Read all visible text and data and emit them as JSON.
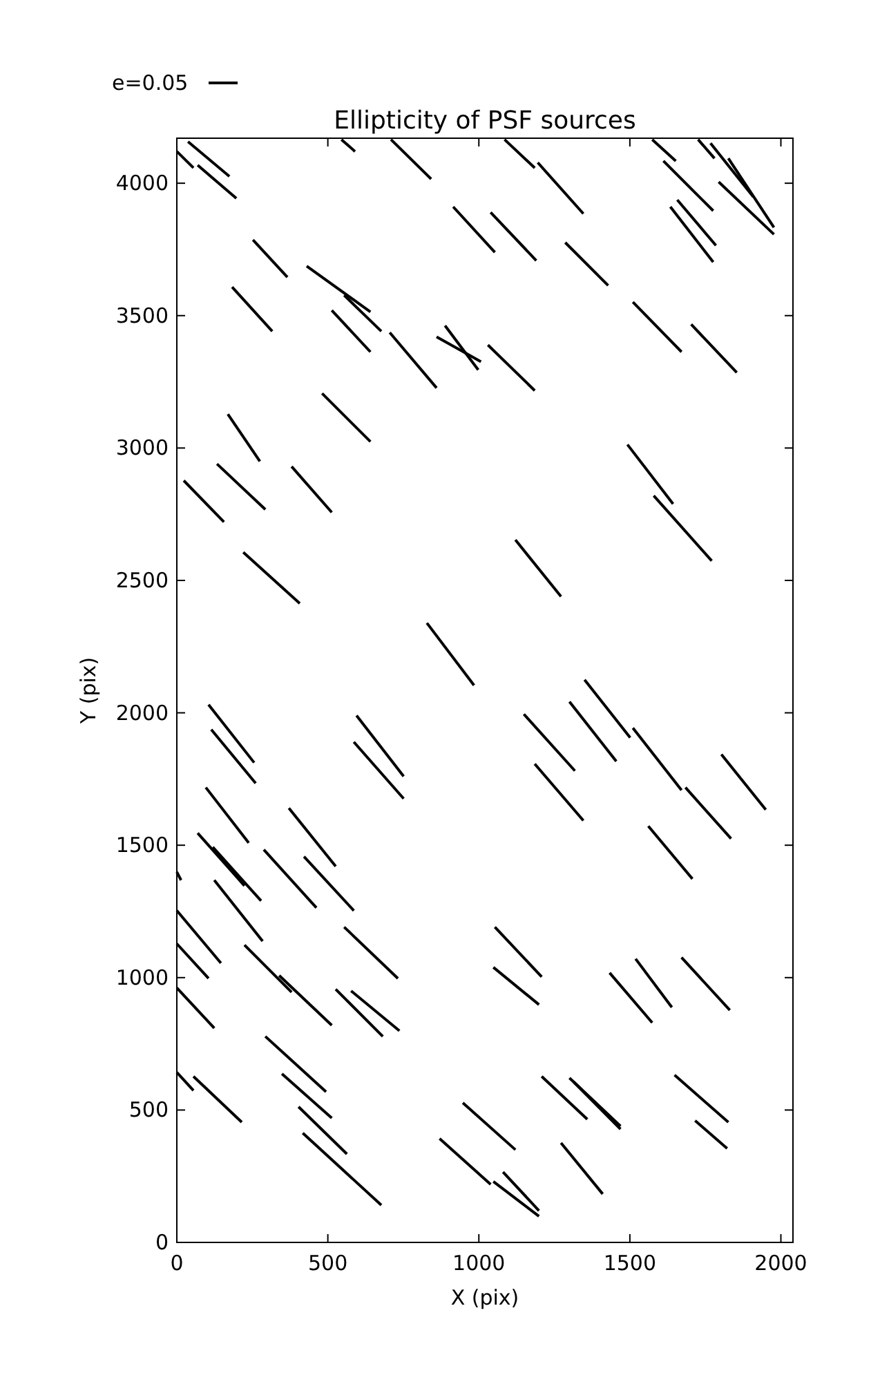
{
  "chart_data": {
    "type": "line",
    "title": "Ellipticity of PSF sources",
    "xlabel": "X (pix)",
    "ylabel": "Y (pix)",
    "annotations": [
      "e=0.05"
    ],
    "color": "#000000",
    "xlim": [
      0,
      2040
    ],
    "ylim": [
      0,
      4170
    ],
    "xticks": [
      0,
      500,
      1000,
      1500,
      2000
    ],
    "yticks": [
      0,
      500,
      1000,
      1500,
      2000,
      2500,
      3000,
      3500,
      4000
    ],
    "grid": false,
    "series": [
      {
        "x": [
          0,
          55
        ],
        "values": [
          4120,
          4058
        ]
      },
      {
        "x": [
          37,
          174
        ],
        "values": [
          4157,
          4026
        ]
      },
      {
        "x": [
          69,
          197
        ],
        "values": [
          4068,
          3943
        ]
      },
      {
        "x": [
          545,
          590
        ],
        "values": [
          4165,
          4120
        ]
      },
      {
        "x": [
          709,
          842
        ],
        "values": [
          4165,
          4016
        ]
      },
      {
        "x": [
          1085,
          1185
        ],
        "values": [
          4165,
          4058
        ]
      },
      {
        "x": [
          1195,
          1346
        ],
        "values": [
          4078,
          3885
        ]
      },
      {
        "x": [
          1574,
          1652
        ],
        "values": [
          4165,
          4084
        ]
      },
      {
        "x": [
          1611,
          1776
        ],
        "values": [
          4084,
          3896
        ]
      },
      {
        "x": [
          1726,
          1780
        ],
        "values": [
          4165,
          4094
        ]
      },
      {
        "x": [
          1767,
          1909
        ],
        "values": [
          4151,
          3948
        ]
      },
      {
        "x": [
          1826,
          1977
        ],
        "values": [
          4094,
          3833
        ]
      },
      {
        "x": [
          1634,
          1776
        ],
        "values": [
          3911,
          3702
        ]
      },
      {
        "x": [
          1657,
          1785
        ],
        "values": [
          3937,
          3765
        ]
      },
      {
        "x": [
          1794,
          1977
        ],
        "values": [
          4005,
          3807
        ]
      },
      {
        "x": [
          915,
          1053
        ],
        "values": [
          3911,
          3739
        ]
      },
      {
        "x": [
          1039,
          1190
        ],
        "values": [
          3890,
          3708
        ]
      },
      {
        "x": [
          1286,
          1428
        ],
        "values": [
          3776,
          3614
        ]
      },
      {
        "x": [
          252,
          366
        ],
        "values": [
          3786,
          3645
        ]
      },
      {
        "x": [
          430,
          641
        ],
        "values": [
          3687,
          3514
        ]
      },
      {
        "x": [
          554,
          677
        ],
        "values": [
          3577,
          3441
        ]
      },
      {
        "x": [
          513,
          641
        ],
        "values": [
          3520,
          3363
        ]
      },
      {
        "x": [
          705,
          860
        ],
        "values": [
          3436,
          3227
        ]
      },
      {
        "x": [
          888,
          998
        ],
        "values": [
          3462,
          3295
        ]
      },
      {
        "x": [
          860,
          1007
        ],
        "values": [
          3420,
          3326
        ]
      },
      {
        "x": [
          1030,
          1185
        ],
        "values": [
          3389,
          3217
        ]
      },
      {
        "x": [
          183,
          316
        ],
        "values": [
          3608,
          3441
        ]
      },
      {
        "x": [
          1510,
          1671
        ],
        "values": [
          3551,
          3363
        ]
      },
      {
        "x": [
          1703,
          1854
        ],
        "values": [
          3467,
          3285
        ]
      },
      {
        "x": [
          169,
          275
        ],
        "values": [
          3128,
          2950
        ]
      },
      {
        "x": [
          481,
          641
        ],
        "values": [
          3206,
          3024
        ]
      },
      {
        "x": [
          23,
          156
        ],
        "values": [
          2877,
          2721
        ]
      },
      {
        "x": [
          133,
          293
        ],
        "values": [
          2940,
          2768
        ]
      },
      {
        "x": [
          380,
          513
        ],
        "values": [
          2930,
          2757
        ]
      },
      {
        "x": [
          220,
          407
        ],
        "values": [
          2606,
          2413
        ]
      },
      {
        "x": [
          1121,
          1272
        ],
        "values": [
          2653,
          2439
        ]
      },
      {
        "x": [
          1492,
          1643
        ],
        "values": [
          3013,
          2789
        ]
      },
      {
        "x": [
          1579,
          1771
        ],
        "values": [
          2820,
          2574
        ]
      },
      {
        "x": [
          828,
          984
        ],
        "values": [
          2339,
          2104
        ]
      },
      {
        "x": [
          105,
          256
        ],
        "values": [
          2031,
          1812
        ]
      },
      {
        "x": [
          114,
          261
        ],
        "values": [
          1937,
          1734
        ]
      },
      {
        "x": [
          595,
          751
        ],
        "values": [
          1990,
          1760
        ]
      },
      {
        "x": [
          586,
          751
        ],
        "values": [
          1890,
          1676
        ]
      },
      {
        "x": [
          1149,
          1318
        ],
        "values": [
          1995,
          1781
        ]
      },
      {
        "x": [
          1300,
          1455
        ],
        "values": [
          2042,
          1817
        ]
      },
      {
        "x": [
          1350,
          1501
        ],
        "values": [
          2125,
          1906
        ]
      },
      {
        "x": [
          1185,
          1346
        ],
        "values": [
          1807,
          1593
        ]
      },
      {
        "x": [
          1510,
          1671
        ],
        "values": [
          1943,
          1708
        ]
      },
      {
        "x": [
          1803,
          1950
        ],
        "values": [
          1843,
          1634
        ]
      },
      {
        "x": [
          1561,
          1707
        ],
        "values": [
          1572,
          1373
        ]
      },
      {
        "x": [
          1684,
          1835
        ],
        "values": [
          1718,
          1525
        ]
      },
      {
        "x": [
          96,
          238
        ],
        "values": [
          1718,
          1509
        ]
      },
      {
        "x": [
          69,
          224
        ],
        "values": [
          1546,
          1347
        ]
      },
      {
        "x": [
          0,
          14
        ],
        "values": [
          1399,
          1368
        ]
      },
      {
        "x": [
          119,
          279
        ],
        "values": [
          1493,
          1290
        ]
      },
      {
        "x": [
          288,
          462
        ],
        "values": [
          1483,
          1264
        ]
      },
      {
        "x": [
          371,
          526
        ],
        "values": [
          1640,
          1420
        ]
      },
      {
        "x": [
          421,
          586
        ],
        "values": [
          1457,
          1253
        ]
      },
      {
        "x": [
          0,
          146
        ],
        "values": [
          1253,
          1055
        ]
      },
      {
        "x": [
          0,
          105
        ],
        "values": [
          1128,
          997
        ]
      },
      {
        "x": [
          124,
          284
        ],
        "values": [
          1368,
          1138
        ]
      },
      {
        "x": [
          224,
          380
        ],
        "values": [
          1123,
          945
        ]
      },
      {
        "x": [
          339,
          513
        ],
        "values": [
          1008,
          820
        ]
      },
      {
        "x": [
          554,
          732
        ],
        "values": [
          1191,
          997
        ]
      },
      {
        "x": [
          0,
          124
        ],
        "values": [
          961,
          809
        ]
      },
      {
        "x": [
          526,
          682
        ],
        "values": [
          956,
          778
        ]
      },
      {
        "x": [
          577,
          737
        ],
        "values": [
          950,
          799
        ]
      },
      {
        "x": [
          1053,
          1208
        ],
        "values": [
          1191,
          1003
        ]
      },
      {
        "x": [
          1048,
          1199
        ],
        "values": [
          1039,
          898
        ]
      },
      {
        "x": [
          1433,
          1574
        ],
        "values": [
          1018,
          830
        ]
      },
      {
        "x": [
          1519,
          1639
        ],
        "values": [
          1071,
          888
        ]
      },
      {
        "x": [
          1671,
          1831
        ],
        "values": [
          1076,
          877
        ]
      },
      {
        "x": [
          0,
          55
        ],
        "values": [
          642,
          574
        ]
      },
      {
        "x": [
          55,
          215
        ],
        "values": [
          627,
          454
        ]
      },
      {
        "x": [
          293,
          494
        ],
        "values": [
          778,
          569
        ]
      },
      {
        "x": [
          348,
          513
        ],
        "values": [
          637,
          470
        ]
      },
      {
        "x": [
          403,
          563
        ],
        "values": [
          512,
          334
        ]
      },
      {
        "x": [
          417,
          677
        ],
        "values": [
          413,
          141
        ]
      },
      {
        "x": [
          947,
          1121
        ],
        "values": [
          527,
          350
        ]
      },
      {
        "x": [
          870,
          1039
        ],
        "values": [
          392,
          219
        ]
      },
      {
        "x": [
          1048,
          1199
        ],
        "values": [
          230,
          99
        ]
      },
      {
        "x": [
          1080,
          1199
        ],
        "values": [
          266,
          120
        ]
      },
      {
        "x": [
          1208,
          1359
        ],
        "values": [
          627,
          465
        ]
      },
      {
        "x": [
          1272,
          1410
        ],
        "values": [
          376,
          183
        ]
      },
      {
        "x": [
          1300,
          1469
        ],
        "values": [
          621,
          439
        ]
      },
      {
        "x": [
          1314,
          1469
        ],
        "values": [
          606,
          428
        ]
      },
      {
        "x": [
          1648,
          1826
        ],
        "values": [
          632,
          454
        ]
      },
      {
        "x": [
          1716,
          1822
        ],
        "values": [
          460,
          355
        ]
      }
    ]
  }
}
